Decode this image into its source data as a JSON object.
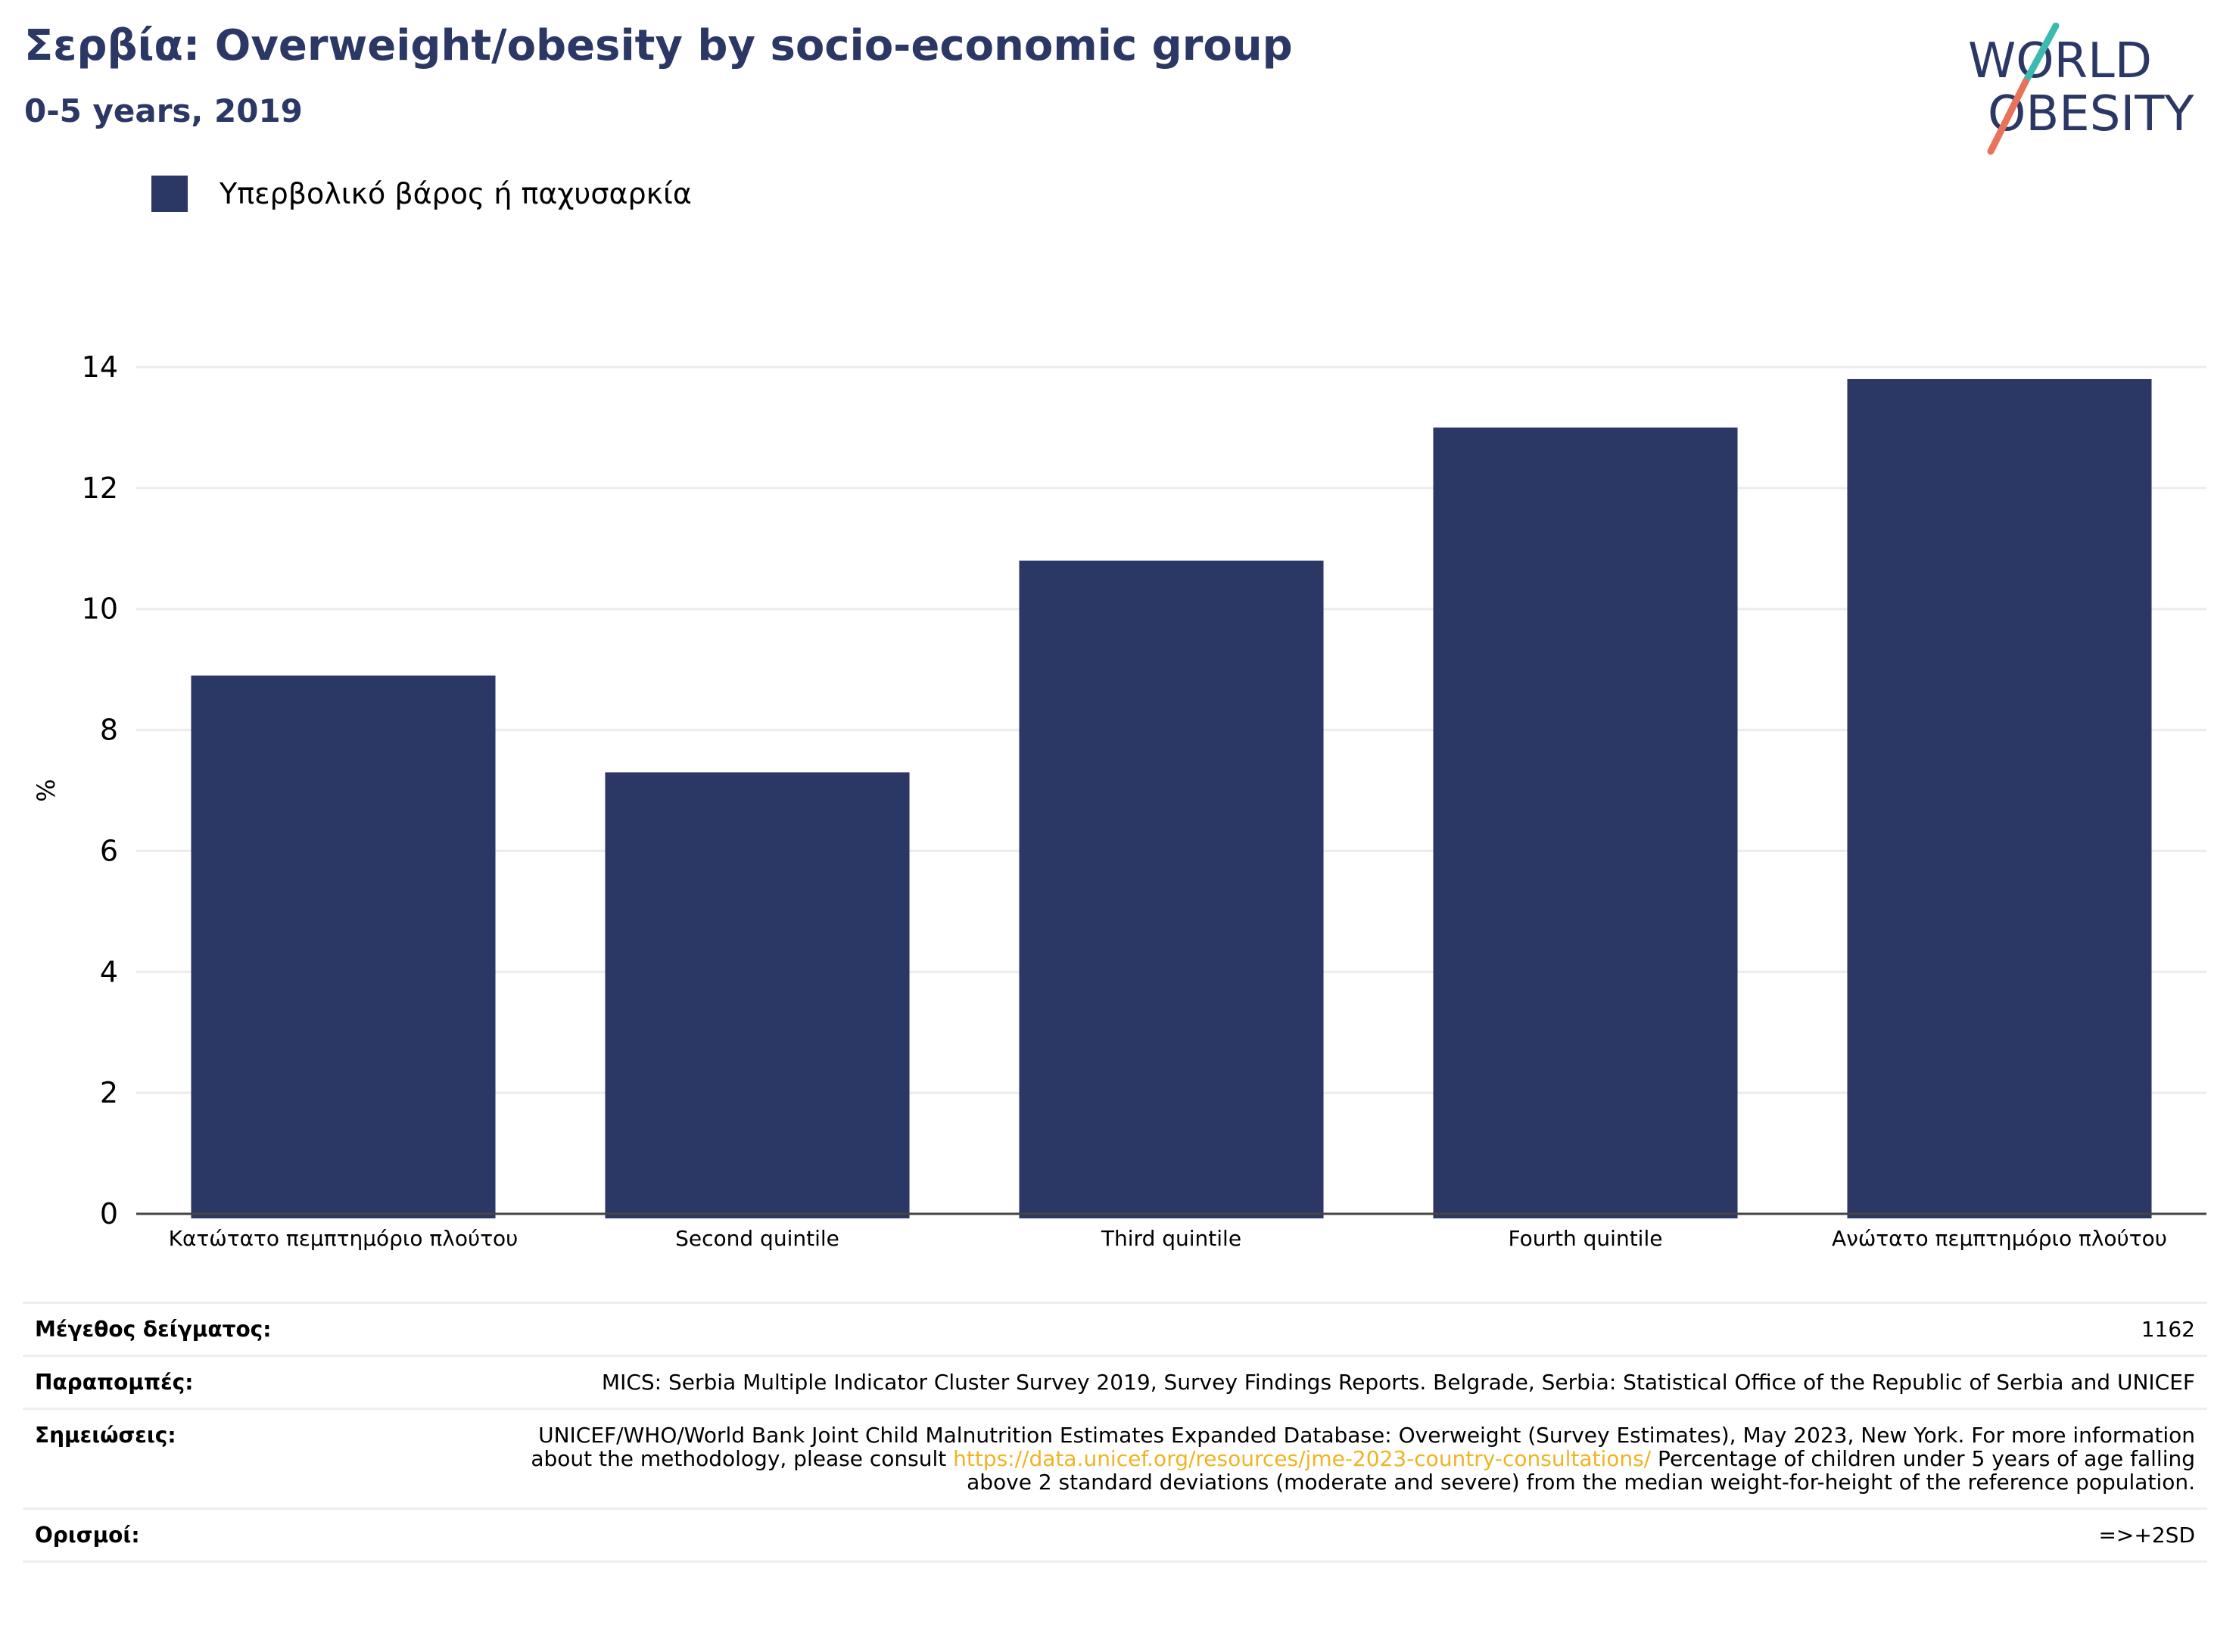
{
  "header": {
    "title": "Σερβία: Overweight/obesity by socio-economic group",
    "subtitle": "0-5 years, 2019"
  },
  "logo": {
    "line1": "WORLD",
    "line2": "OBESITY",
    "colors": {
      "text": "#2b3764",
      "slash_top": "#3bbbb0",
      "slash_bottom": "#e8735a"
    }
  },
  "legend": {
    "label": "Υπερβολικό βάρος ή παχυσαρκία",
    "color": "#2b3764"
  },
  "chart_data": {
    "type": "bar",
    "categories": [
      "Κατώτατο πεμπτημόριο πλούτου",
      "Second quintile",
      "Third quintile",
      "Fourth quintile",
      "Ανώτατο πεμπτημόριο πλούτου"
    ],
    "series": [
      {
        "name": "Υπερβολικό βάρος ή παχυσαρκία",
        "values": [
          8.9,
          7.3,
          10.8,
          13.0,
          13.8
        ],
        "color": "#2b3764"
      }
    ],
    "ylabel": "%",
    "xlabel": "",
    "ylim": [
      0,
      14
    ],
    "yticks": [
      "0",
      "2",
      "4",
      "6",
      "8",
      "10",
      "12",
      "14"
    ],
    "grid": true
  },
  "footer": {
    "sample_size": {
      "label": "Μέγεθος δείγματος:",
      "value": "1162"
    },
    "references": {
      "label": "Παραπομπές:",
      "value": "MICS: Serbia Multiple Indicator Cluster Survey 2019, Survey Findings Reports. Belgrade, Serbia: Statistical Office of the Republic of Serbia and UNICEF"
    },
    "notes": {
      "label": "Σημειώσεις:",
      "text_before": "UNICEF/WHO/World Bank Joint Child Malnutrition Estimates Expanded Database: Overweight (Survey Estimates), May 2023, New York. For more information about the methodology, please consult ",
      "link": "https://data.unicef.org/resources/jme-2023-country-consultations/",
      "text_after": " Percentage of children under 5 years of age falling above 2 standard deviations (moderate and severe) from the median weight-for-height of the reference population."
    },
    "definitions": {
      "label": "Ορισμοί:",
      "value": "=>+2SD"
    }
  }
}
